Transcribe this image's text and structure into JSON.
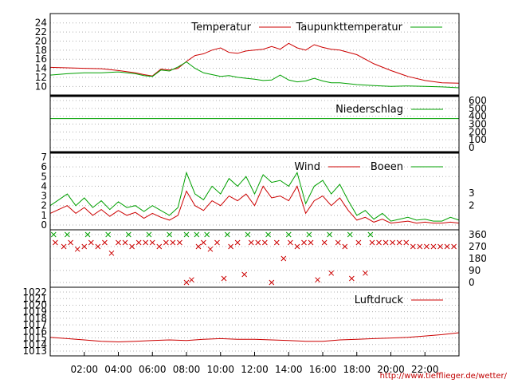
{
  "credit": "http://www.tiefflieger.de/wetter/",
  "x_labels": [
    "02:00",
    "04:00",
    "06:00",
    "08:00",
    "10:00",
    "12:00",
    "14:00",
    "16:00",
    "18:00",
    "20:00",
    "22:00"
  ],
  "x_range_hours": [
    0,
    24
  ],
  "colors": {
    "red": "#cc0000",
    "green": "#00a000",
    "frame": "#000000",
    "grid": "#b0b0b0"
  },
  "chart_data": [
    {
      "type": "line",
      "panel": "temperature",
      "yticks": [
        "10",
        "12",
        "14",
        "16",
        "18",
        "20",
        "22",
        "24"
      ],
      "ylim": [
        9,
        25
      ],
      "legend": [
        "Temperatur",
        "Taupunkttemperatur"
      ],
      "series": [
        {
          "name": "Temperatur",
          "color": "#cc0000",
          "x": [
            0,
            1,
            2,
            3,
            4,
            5,
            5.5,
            6,
            6.5,
            7,
            7.5,
            8,
            8.5,
            9,
            9.5,
            10,
            10.5,
            11,
            11.5,
            12,
            12.5,
            13,
            13.5,
            14,
            14.5,
            15,
            15.5,
            16,
            16.5,
            17,
            18,
            19,
            20,
            21,
            22,
            23,
            24
          ],
          "y": [
            14.2,
            14.1,
            14.0,
            13.9,
            13.5,
            13.0,
            12.6,
            12.3,
            13.8,
            13.6,
            14.0,
            15.5,
            16.8,
            17.2,
            18.0,
            18.5,
            17.5,
            17.3,
            17.8,
            18.0,
            18.2,
            18.8,
            18.2,
            19.5,
            18.5,
            18.0,
            19.2,
            18.6,
            18.2,
            18.0,
            17.0,
            15.0,
            13.5,
            12.2,
            11.3,
            10.8,
            10.7
          ]
        },
        {
          "name": "Taupunkttemperatur",
          "color": "#00a000",
          "x": [
            0,
            1,
            2,
            3,
            4,
            5,
            5.5,
            6,
            6.5,
            7,
            7.5,
            8,
            8.5,
            9,
            9.5,
            10,
            10.5,
            11,
            11.5,
            12,
            12.5,
            13,
            13.5,
            14,
            14.5,
            15,
            15.5,
            16,
            16.5,
            17,
            18,
            19,
            20,
            21,
            22,
            23,
            24
          ],
          "y": [
            12.5,
            12.8,
            13.0,
            13.0,
            13.2,
            12.8,
            12.4,
            12.2,
            13.6,
            13.4,
            14.3,
            15.4,
            14.0,
            13.0,
            12.6,
            12.2,
            12.4,
            12.0,
            11.8,
            11.6,
            11.3,
            11.4,
            12.5,
            11.4,
            11.0,
            11.2,
            11.8,
            11.2,
            10.8,
            10.8,
            10.4,
            10.2,
            10.0,
            10.1,
            10.0,
            9.9,
            9.7
          ]
        }
      ]
    },
    {
      "type": "line",
      "panel": "precipitation",
      "yticks": [
        "0",
        "100",
        "200",
        "300",
        "400",
        "500",
        "600"
      ],
      "ylim": [
        0,
        600
      ],
      "legend": [
        "Niederschlag"
      ],
      "series": [
        {
          "name": "Niederschlag",
          "color": "#00a000",
          "x": [
            0,
            24
          ],
          "y": [
            370,
            370
          ]
        }
      ]
    },
    {
      "type": "line",
      "panel": "wind",
      "yticks": [
        "0",
        "1",
        "2",
        "3",
        "4",
        "5",
        "6",
        "7"
      ],
      "ylim": [
        0,
        7
      ],
      "right_labels": [
        "2",
        "3"
      ],
      "legend": [
        "Wind",
        "Boeen"
      ],
      "series": [
        {
          "name": "Wind",
          "color": "#cc0000",
          "x": [
            0,
            0.5,
            1,
            1.5,
            2,
            2.5,
            3,
            3.5,
            4,
            4.5,
            5,
            5.5,
            6,
            6.5,
            7,
            7.5,
            8,
            8.5,
            9,
            9.5,
            10,
            10.5,
            11,
            11.5,
            12,
            12.5,
            13,
            13.5,
            14,
            14.5,
            15,
            15.5,
            16,
            16.5,
            17,
            17.5,
            18,
            18.5,
            19,
            19.5,
            20,
            20.5,
            21,
            21.5,
            22,
            22.5,
            23,
            23.5,
            24
          ],
          "y": [
            1.2,
            1.6,
            2.0,
            1.2,
            1.8,
            1.0,
            1.6,
            0.9,
            1.5,
            1.0,
            1.3,
            0.7,
            1.2,
            0.8,
            0.5,
            1.0,
            3.5,
            2.0,
            1.5,
            2.5,
            2.0,
            3.0,
            2.5,
            3.2,
            2.0,
            4.0,
            2.8,
            3.0,
            2.5,
            4.0,
            1.2,
            2.5,
            3.0,
            2.0,
            2.8,
            1.5,
            0.5,
            0.8,
            0.3,
            0.6,
            0.2,
            0.3,
            0.4,
            0.2,
            0.3,
            0.2,
            0.2,
            0.3,
            0.2
          ]
        },
        {
          "name": "Boeen",
          "color": "#00a000",
          "x": [
            0,
            0.5,
            1,
            1.5,
            2,
            2.5,
            3,
            3.5,
            4,
            4.5,
            5,
            5.5,
            6,
            6.5,
            7,
            7.5,
            8,
            8.5,
            9,
            9.5,
            10,
            10.5,
            11,
            11.5,
            12,
            12.5,
            13,
            13.5,
            14,
            14.5,
            15,
            15.5,
            16,
            16.5,
            17,
            17.5,
            18,
            18.5,
            19,
            19.5,
            20,
            20.5,
            21,
            21.5,
            22,
            22.5,
            23,
            23.5,
            24
          ],
          "y": [
            2.0,
            2.6,
            3.2,
            2.0,
            2.8,
            1.8,
            2.5,
            1.6,
            2.4,
            1.8,
            2.0,
            1.4,
            2.0,
            1.5,
            1.0,
            1.8,
            5.4,
            3.2,
            2.6,
            4.0,
            3.2,
            4.8,
            4.0,
            5.0,
            3.2,
            5.2,
            4.4,
            4.6,
            4.0,
            5.4,
            2.2,
            4.0,
            4.6,
            3.2,
            4.2,
            2.5,
            1.0,
            1.5,
            0.6,
            1.2,
            0.4,
            0.6,
            0.8,
            0.5,
            0.6,
            0.4,
            0.4,
            0.8,
            0.5
          ]
        }
      ]
    },
    {
      "type": "scatter",
      "panel": "wind_direction",
      "yticks": [
        "0",
        "90",
        "180",
        "270",
        "360"
      ],
      "ylim": [
        0,
        360
      ],
      "series": [
        {
          "name": "",
          "color": "#cc0000",
          "marker": "x",
          "x": [
            0.3,
            0.8,
            1.2,
            1.6,
            2.0,
            2.4,
            2.8,
            3.2,
            3.6,
            4.0,
            4.4,
            4.8,
            5.2,
            5.6,
            6.0,
            6.4,
            6.8,
            7.2,
            7.6,
            8.0,
            8.3,
            8.7,
            9.0,
            9.4,
            9.8,
            10.2,
            10.6,
            11.0,
            11.4,
            11.8,
            12.2,
            12.6,
            13.0,
            13.3,
            13.7,
            14.1,
            14.5,
            14.9,
            15.3,
            15.7,
            16.1,
            16.5,
            16.9,
            17.3,
            17.7,
            18.1,
            18.5,
            18.9,
            19.3,
            19.7,
            20.1,
            20.5,
            20.9,
            21.3,
            21.7,
            22.1,
            22.5,
            22.9,
            23.3,
            23.7
          ],
          "y": [
            300,
            270,
            300,
            250,
            270,
            300,
            270,
            300,
            220,
            300,
            300,
            270,
            300,
            300,
            300,
            270,
            300,
            300,
            300,
            0,
            20,
            270,
            300,
            250,
            300,
            30,
            270,
            300,
            60,
            300,
            300,
            300,
            0,
            300,
            180,
            300,
            270,
            300,
            300,
            20,
            300,
            70,
            300,
            270,
            30,
            300,
            70,
            300,
            300,
            300,
            300,
            300,
            300,
            270,
            270,
            270,
            270,
            270,
            270,
            270
          ]
        },
        {
          "name": "",
          "color": "#00a000",
          "marker": "x",
          "x": [
            0.2,
            1.0,
            2.2,
            3.4,
            4.6,
            5.8,
            7.0,
            8.0,
            8.6,
            9.2,
            10.4,
            11.6,
            12.8,
            14.0,
            15.2,
            16.4,
            17.6,
            18.8
          ],
          "y": [
            360,
            360,
            360,
            360,
            360,
            360,
            360,
            360,
            360,
            360,
            360,
            360,
            360,
            360,
            360,
            360,
            360,
            360
          ]
        }
      ]
    },
    {
      "type": "line",
      "panel": "pressure",
      "yticks": [
        "1013",
        "1014",
        "1015",
        "1016",
        "1017",
        "1018",
        "1019",
        "1020",
        "1021",
        "1022"
      ],
      "ylim": [
        1013,
        1022
      ],
      "legend": [
        "Luftdruck"
      ],
      "series": [
        {
          "name": "Luftdruck",
          "color": "#cc0000",
          "x": [
            0,
            1,
            2,
            3,
            4,
            5,
            6,
            7,
            8,
            9,
            10,
            11,
            12,
            13,
            14,
            15,
            16,
            17,
            18,
            19,
            20,
            21,
            22,
            23,
            24
          ],
          "y": [
            1015.1,
            1014.9,
            1014.7,
            1014.5,
            1014.4,
            1014.5,
            1014.6,
            1014.7,
            1014.6,
            1014.8,
            1014.9,
            1014.8,
            1014.8,
            1014.7,
            1014.6,
            1014.5,
            1014.5,
            1014.7,
            1014.8,
            1014.9,
            1015.0,
            1015.1,
            1015.3,
            1015.5,
            1015.8
          ]
        }
      ]
    }
  ]
}
